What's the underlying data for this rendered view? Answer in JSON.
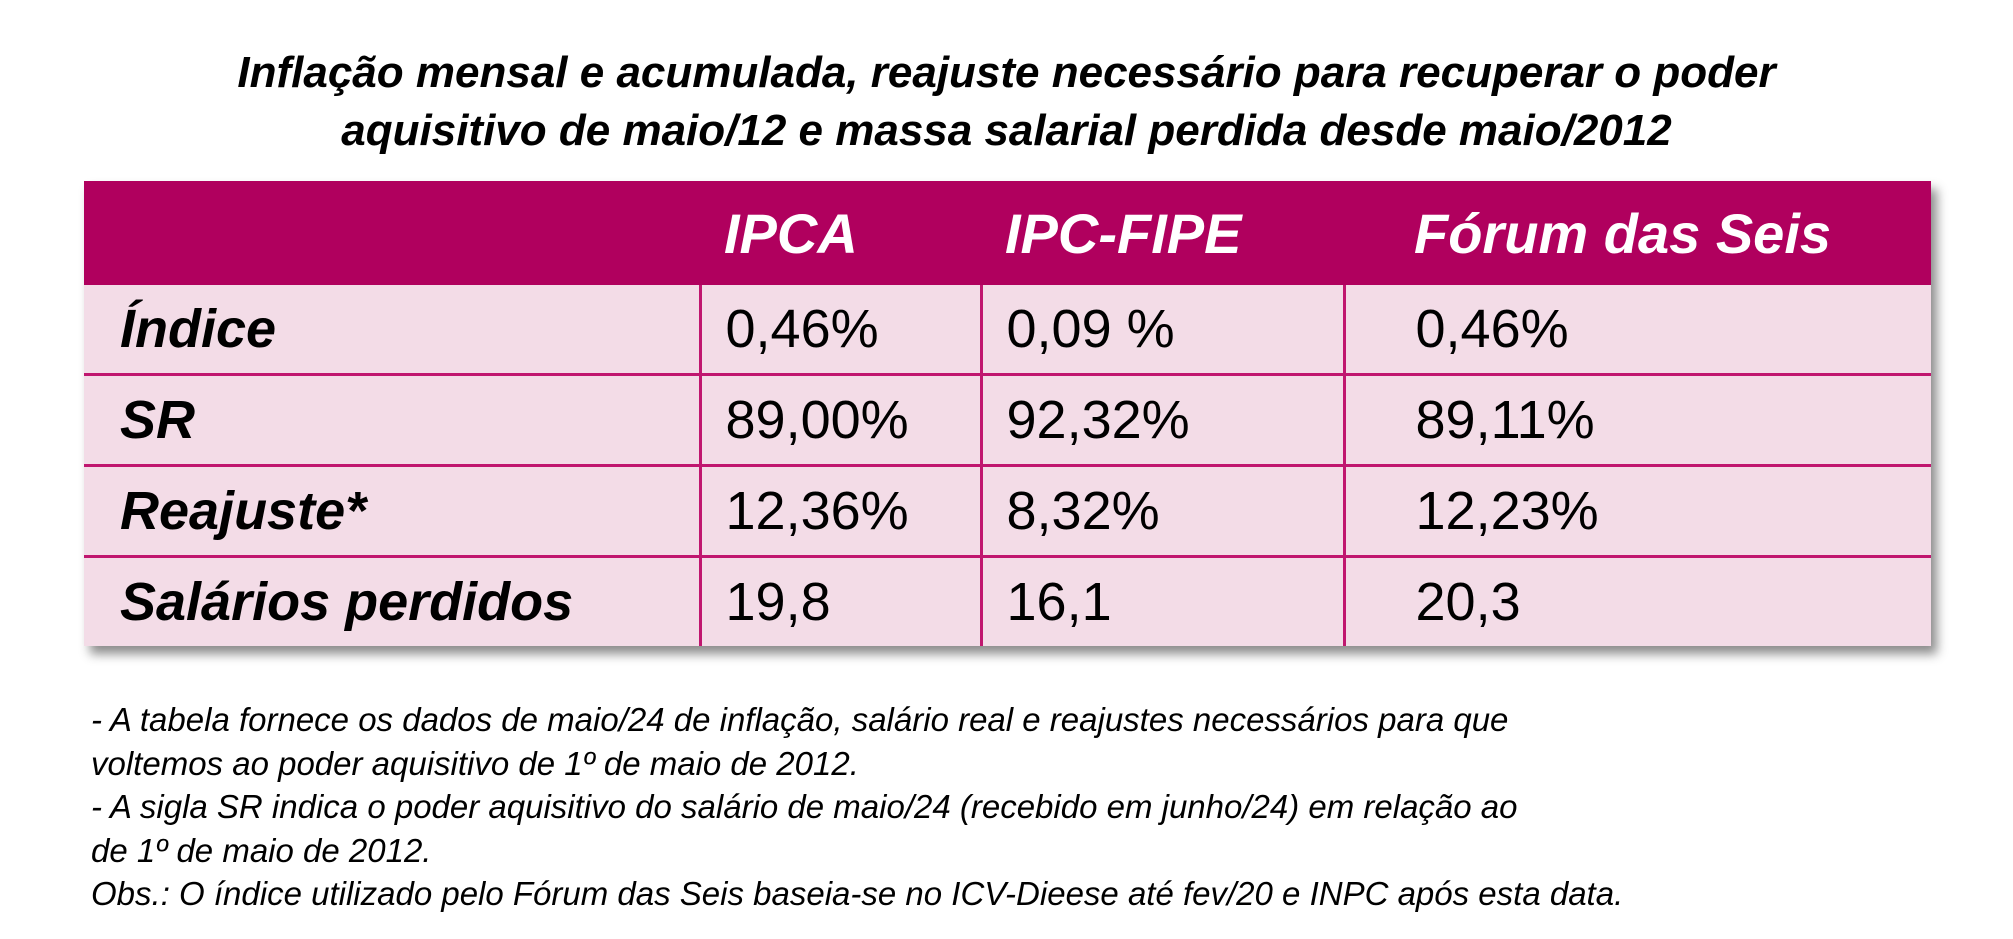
{
  "header": {
    "title_lines": [
      "Inflação mensal e acumulada, reajuste necessário para recuperar o poder",
      "aquisitivo de maio/12 e massa salarial perdida desde maio/2012"
    ]
  },
  "table": {
    "columns": [
      "IPCA",
      "IPC-FIPE",
      "Fórum das Seis"
    ],
    "rows": [
      {
        "label": "Índice",
        "values": [
          "0,46%",
          "0,09 %",
          "0,46%"
        ]
      },
      {
        "label": "SR",
        "values": [
          "89,00%",
          "92,32%",
          "89,11%"
        ]
      },
      {
        "label": "Reajuste*",
        "values": [
          "12,36%",
          "8,32%",
          "12,23%"
        ]
      },
      {
        "label": "Salários perdidos",
        "values": [
          "19,8",
          "16,1",
          "20,3"
        ]
      }
    ]
  },
  "notes": [
    "- A tabela fornece os dados de maio/24 de inflação, salário real e reajustes necessários para que",
    "voltemos ao poder aquisitivo de 1º de maio de 2012.",
    "- A sigla SR indica o poder aquisitivo do salário de maio/24 (recebido em junho/24) em relação ao",
    "de 1º de maio de 2012.",
    "Obs.: O índice utilizado pelo Fórum das Seis baseia-se no ICV-Dieese até fev/20 e INPC após esta data."
  ]
}
